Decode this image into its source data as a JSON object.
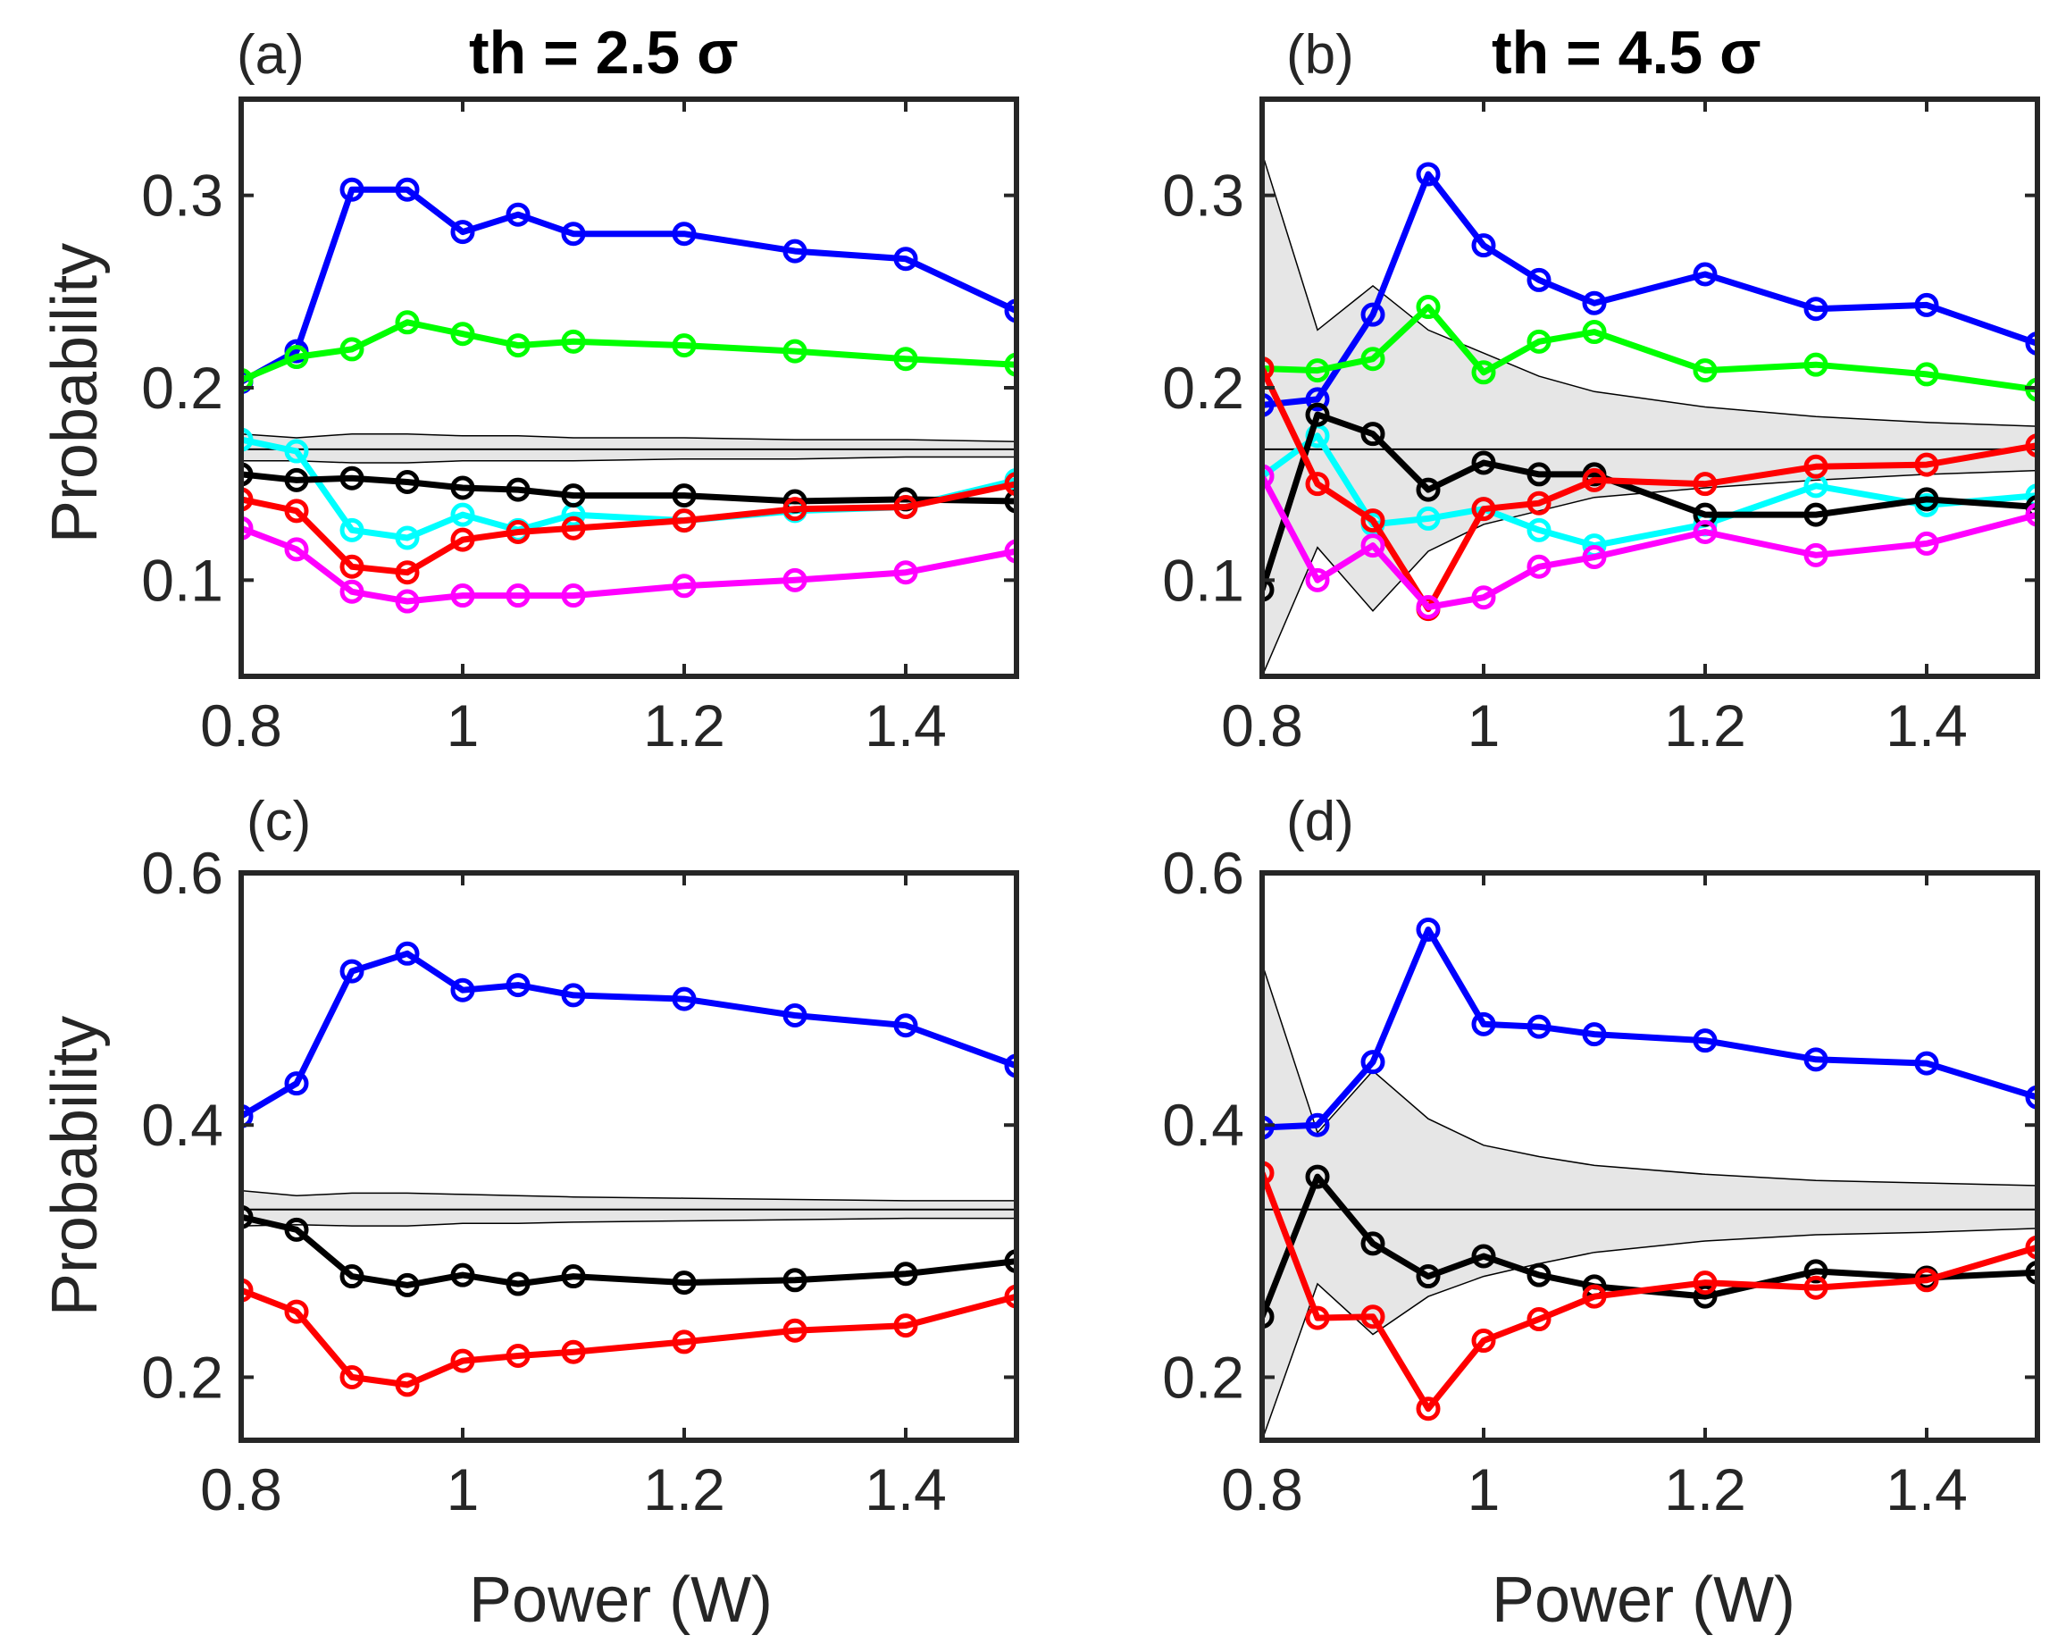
{
  "chart_data": [
    {
      "type": "line",
      "panel_label": "(a)",
      "title": "th = 2.5 σ",
      "xlabel": "",
      "ylabel": "Probability",
      "xlim": [
        0.8,
        1.5
      ],
      "ylim": [
        0.05,
        0.35
      ],
      "xticks": [
        0.8,
        1,
        1.2,
        1.4
      ],
      "xtick_labels": [
        "0.8",
        "1",
        "1.2",
        "1.4"
      ],
      "yticks": [
        0.1,
        0.2,
        0.3
      ],
      "ytick_labels": [
        "0.1",
        "0.2",
        "0.3"
      ],
      "grid": false,
      "x": [
        0.8,
        0.85,
        0.9,
        0.95,
        1.0,
        1.05,
        1.1,
        1.2,
        1.3,
        1.4,
        1.5
      ],
      "band": {
        "mean": 0.168,
        "upper": [
          0.176,
          0.174,
          0.176,
          0.176,
          0.175,
          0.175,
          0.174,
          0.174,
          0.173,
          0.173,
          0.172
        ],
        "lower": [
          0.162,
          0.162,
          0.161,
          0.161,
          0.162,
          0.162,
          0.162,
          0.163,
          0.163,
          0.164,
          0.164
        ]
      },
      "series": [
        {
          "name": "blue",
          "color": "#0000ff",
          "values": [
            0.203,
            0.219,
            0.303,
            0.303,
            0.281,
            0.29,
            0.28,
            0.28,
            0.271,
            0.267,
            0.24
          ]
        },
        {
          "name": "green",
          "color": "#00ff00",
          "values": [
            0.204,
            0.216,
            0.22,
            0.234,
            0.228,
            0.222,
            0.224,
            0.222,
            0.219,
            0.215,
            0.212
          ]
        },
        {
          "name": "cyan",
          "color": "#00ffff",
          "values": [
            0.173,
            0.167,
            0.126,
            0.122,
            0.134,
            0.126,
            0.134,
            0.131,
            0.136,
            0.138,
            0.152
          ]
        },
        {
          "name": "black",
          "color": "#000000",
          "values": [
            0.155,
            0.152,
            0.153,
            0.151,
            0.148,
            0.147,
            0.144,
            0.144,
            0.141,
            0.142,
            0.141
          ]
        },
        {
          "name": "red",
          "color": "#ff0000",
          "values": [
            0.142,
            0.136,
            0.107,
            0.104,
            0.121,
            0.125,
            0.127,
            0.131,
            0.137,
            0.138,
            0.15
          ]
        },
        {
          "name": "magenta",
          "color": "#ff00ff",
          "values": [
            0.127,
            0.116,
            0.094,
            0.089,
            0.092,
            0.092,
            0.092,
            0.097,
            0.1,
            0.104,
            0.115
          ]
        }
      ]
    },
    {
      "type": "line",
      "panel_label": "(b)",
      "title": "th = 4.5 σ",
      "xlabel": "",
      "ylabel": "",
      "xlim": [
        0.8,
        1.5
      ],
      "ylim": [
        0.05,
        0.35
      ],
      "xticks": [
        0.8,
        1,
        1.2,
        1.4
      ],
      "xtick_labels": [
        "0.8",
        "1",
        "1.2",
        "1.4"
      ],
      "yticks": [
        0.1,
        0.2,
        0.3
      ],
      "ytick_labels": [
        "0.1",
        "0.2",
        "0.3"
      ],
      "grid": false,
      "x": [
        0.8,
        0.85,
        0.9,
        0.95,
        1.0,
        1.05,
        1.1,
        1.2,
        1.3,
        1.4,
        1.5
      ],
      "band": {
        "mean": 0.168,
        "upper": [
          0.322,
          0.23,
          0.253,
          0.23,
          0.218,
          0.206,
          0.198,
          0.19,
          0.185,
          0.182,
          0.18
        ],
        "lower": [
          0.05,
          0.117,
          0.084,
          0.115,
          0.129,
          0.136,
          0.143,
          0.148,
          0.152,
          0.155,
          0.157
        ]
      },
      "series": [
        {
          "name": "blue",
          "color": "#0000ff",
          "values": [
            0.191,
            0.194,
            0.238,
            0.311,
            0.274,
            0.256,
            0.244,
            0.259,
            0.241,
            0.243,
            0.223
          ]
        },
        {
          "name": "green",
          "color": "#00ff00",
          "values": [
            0.21,
            0.209,
            0.215,
            0.242,
            0.208,
            0.224,
            0.229,
            0.209,
            0.212,
            0.207,
            0.199
          ]
        },
        {
          "name": "cyan",
          "color": "#00ffff",
          "values": [
            0.154,
            0.175,
            0.129,
            0.132,
            0.137,
            0.126,
            0.118,
            0.129,
            0.149,
            0.139,
            0.144
          ]
        },
        {
          "name": "black",
          "color": "#000000",
          "values": [
            0.095,
            0.186,
            0.176,
            0.147,
            0.161,
            0.155,
            0.155,
            0.134,
            0.134,
            0.142,
            0.138
          ]
        },
        {
          "name": "red",
          "color": "#ff0000",
          "values": [
            0.21,
            0.15,
            0.131,
            0.085,
            0.137,
            0.14,
            0.152,
            0.15,
            0.159,
            0.16,
            0.17
          ]
        },
        {
          "name": "magenta",
          "color": "#ff00ff",
          "values": [
            0.154,
            0.1,
            0.118,
            0.086,
            0.091,
            0.107,
            0.112,
            0.125,
            0.113,
            0.119,
            0.134
          ]
        }
      ]
    },
    {
      "type": "line",
      "panel_label": "(c)",
      "title": "",
      "xlabel": "Power (W)",
      "ylabel": "Probability",
      "xlim": [
        0.8,
        1.5
      ],
      "ylim": [
        0.15,
        0.6
      ],
      "xticks": [
        0.8,
        1,
        1.2,
        1.4
      ],
      "xtick_labels": [
        "0.8",
        "1",
        "1.2",
        "1.4"
      ],
      "yticks": [
        0.2,
        0.4,
        0.6
      ],
      "ytick_labels": [
        "0.2",
        "0.4",
        "0.6"
      ],
      "grid": false,
      "x": [
        0.8,
        0.85,
        0.9,
        0.95,
        1.0,
        1.05,
        1.1,
        1.2,
        1.3,
        1.4,
        1.5
      ],
      "band": {
        "mean": 0.333,
        "upper": [
          0.348,
          0.344,
          0.346,
          0.346,
          0.345,
          0.344,
          0.343,
          0.342,
          0.341,
          0.34,
          0.34
        ],
        "lower": [
          0.32,
          0.321,
          0.32,
          0.32,
          0.322,
          0.322,
          0.323,
          0.324,
          0.325,
          0.326,
          0.326
        ]
      },
      "series": [
        {
          "name": "blue",
          "color": "#0000ff",
          "values": [
            0.407,
            0.433,
            0.522,
            0.536,
            0.507,
            0.511,
            0.503,
            0.5,
            0.487,
            0.479,
            0.447
          ]
        },
        {
          "name": "black",
          "color": "#000000",
          "values": [
            0.327,
            0.317,
            0.28,
            0.273,
            0.281,
            0.274,
            0.28,
            0.275,
            0.277,
            0.282,
            0.292
          ]
        },
        {
          "name": "red",
          "color": "#ff0000",
          "values": [
            0.269,
            0.252,
            0.2,
            0.194,
            0.213,
            0.217,
            0.22,
            0.228,
            0.237,
            0.241,
            0.264
          ]
        }
      ]
    },
    {
      "type": "line",
      "panel_label": "(d)",
      "title": "",
      "xlabel": "Power (W)",
      "ylabel": "",
      "xlim": [
        0.8,
        1.5
      ],
      "ylim": [
        0.15,
        0.6
      ],
      "xticks": [
        0.8,
        1,
        1.2,
        1.4
      ],
      "xtick_labels": [
        "0.8",
        "1",
        "1.2",
        "1.4"
      ],
      "yticks": [
        0.2,
        0.4,
        0.6
      ],
      "ytick_labels": [
        "0.2",
        "0.4",
        "0.6"
      ],
      "grid": false,
      "x": [
        0.8,
        0.85,
        0.9,
        0.95,
        1.0,
        1.05,
        1.1,
        1.2,
        1.3,
        1.4,
        1.5
      ],
      "band": {
        "mean": 0.333,
        "upper": [
          0.528,
          0.394,
          0.443,
          0.405,
          0.384,
          0.375,
          0.368,
          0.361,
          0.356,
          0.354,
          0.352
        ],
        "lower": [
          0.15,
          0.274,
          0.234,
          0.264,
          0.28,
          0.29,
          0.299,
          0.308,
          0.313,
          0.315,
          0.318
        ]
      },
      "series": [
        {
          "name": "blue",
          "color": "#0000ff",
          "values": [
            0.398,
            0.4,
            0.45,
            0.555,
            0.48,
            0.478,
            0.472,
            0.467,
            0.452,
            0.449,
            0.422
          ]
        },
        {
          "name": "black",
          "color": "#000000",
          "values": [
            0.248,
            0.359,
            0.306,
            0.28,
            0.296,
            0.281,
            0.272,
            0.264,
            0.284,
            0.279,
            0.283
          ]
        },
        {
          "name": "red",
          "color": "#ff0000",
          "values": [
            0.362,
            0.247,
            0.248,
            0.175,
            0.229,
            0.246,
            0.264,
            0.275,
            0.271,
            0.277,
            0.303
          ]
        }
      ]
    }
  ]
}
